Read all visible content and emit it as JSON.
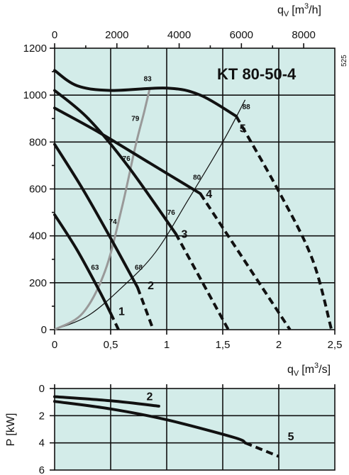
{
  "chart_data": [
    {
      "type": "line",
      "title": "KT 80-50-4",
      "code": "525",
      "x_unit_label": "q",
      "x_unit_sub": "V",
      "x_unit_main": "[m",
      "x_unit_sup": "3",
      "x_unit_tail": "/s]",
      "x_top_unit_label": "q",
      "x_top_unit_sub": "V",
      "x_top_unit_main": "[m",
      "x_top_unit_sup": "3",
      "x_top_unit_tail": "/h]",
      "xlim": [
        0,
        2.5
      ],
      "ylim": [
        0,
        1200
      ],
      "x_ticks": [
        "0",
        "0,5",
        "1",
        "1,5",
        "2",
        "2,5"
      ],
      "x_tick_values": [
        0,
        0.5,
        1,
        1.5,
        2,
        2.5
      ],
      "x_top_ticks": [
        "0",
        "2000",
        "4000",
        "6000",
        "8000"
      ],
      "x_top_tick_values": [
        0,
        2000,
        4000,
        6000,
        8000
      ],
      "y_ticks": [
        "0",
        "200",
        "400",
        "600",
        "800",
        "1000",
        "1200"
      ],
      "y_tick_values": [
        0,
        200,
        400,
        600,
        800,
        1000,
        1200
      ],
      "series": [
        {
          "name": "1",
          "solid": [
            [
              0,
              490
            ],
            [
              0.2,
              340
            ],
            [
              0.4,
              165
            ],
            [
              0.5,
              70
            ]
          ],
          "dashed": [
            [
              0.5,
              70
            ],
            [
              0.57,
              0
            ]
          ],
          "label_at": [
            0.57,
            80
          ]
        },
        {
          "name": "2",
          "solid": [
            [
              0,
              790
            ],
            [
              0.25,
              600
            ],
            [
              0.5,
              390
            ],
            [
              0.74,
              180
            ]
          ],
          "dashed": [
            [
              0.74,
              180
            ],
            [
              0.88,
              0
            ]
          ],
          "label_at": [
            0.83,
            190
          ]
        },
        {
          "name": "3",
          "solid": [
            [
              0,
              1020
            ],
            [
              0.3,
              900
            ],
            [
              0.65,
              700
            ],
            [
              1.08,
              410
            ]
          ],
          "dashed": [
            [
              1.08,
              410
            ],
            [
              1.55,
              0
            ]
          ],
          "label_at": [
            1.13,
            410
          ]
        },
        {
          "name": "4",
          "solid": [
            [
              0,
              945
            ],
            [
              0.4,
              840
            ],
            [
              0.85,
              710
            ],
            [
              1.3,
              580
            ]
          ],
          "dashed": [
            [
              1.3,
              580
            ],
            [
              2.1,
              0
            ]
          ],
          "label_at": [
            1.35,
            580
          ]
        },
        {
          "name": "5",
          "solid": [
            [
              0,
              1105
            ],
            [
              0.2,
              1040
            ],
            [
              0.5,
              1020
            ],
            [
              1.0,
              1030
            ],
            [
              1.3,
              1000
            ],
            [
              1.62,
              910
            ]
          ],
          "dashed": [
            [
              1.62,
              910
            ],
            [
              2.0,
              590
            ],
            [
              2.3,
              300
            ],
            [
              2.47,
              0
            ]
          ],
          "label_at": [
            1.65,
            860
          ]
        }
      ],
      "efficiency_labels": [
        {
          "text": "83",
          "at": [
            0.83,
            1060
          ]
        },
        {
          "text": "88",
          "at": [
            1.71,
            940
          ]
        },
        {
          "text": "79",
          "at": [
            0.72,
            890
          ]
        },
        {
          "text": "76",
          "at": [
            0.64,
            720
          ]
        },
        {
          "text": "80",
          "at": [
            1.27,
            640
          ]
        },
        {
          "text": "74",
          "at": [
            0.52,
            450
          ]
        },
        {
          "text": "76",
          "at": [
            1.04,
            490
          ]
        },
        {
          "text": "63",
          "at": [
            0.36,
            255
          ]
        },
        {
          "text": "68",
          "at": [
            0.75,
            255
          ]
        }
      ],
      "system_curve": [
        [
          0,
          0
        ],
        [
          0.3,
          60
        ],
        [
          0.6,
          180
        ],
        [
          0.9,
          330
        ],
        [
          1.2,
          560
        ],
        [
          1.5,
          800
        ],
        [
          1.7,
          980
        ]
      ],
      "efficiency_curve_83": [
        [
          0,
          0
        ],
        [
          0.25,
          70
        ],
        [
          0.45,
          250
        ],
        [
          0.6,
          520
        ],
        [
          0.72,
          780
        ],
        [
          0.8,
          930
        ],
        [
          0.85,
          1030
        ]
      ]
    },
    {
      "type": "line",
      "ylabel": "P [kW]",
      "xlim": [
        0,
        2.5
      ],
      "ylim": [
        0,
        6
      ],
      "y_ticks": [
        "0",
        "2",
        "4",
        "6"
      ],
      "y_tick_values": [
        0,
        2,
        4,
        6
      ],
      "series": [
        {
          "name": "2",
          "solid": [
            [
              0,
              0.6
            ],
            [
              0.5,
              0.9
            ],
            [
              0.93,
              1.3
            ]
          ],
          "dashed": [],
          "label_at": [
            0.82,
            0.55
          ]
        },
        {
          "name": "5",
          "solid": [
            [
              0,
              0.95
            ],
            [
              0.5,
              1.5
            ],
            [
              1.0,
              2.3
            ],
            [
              1.6,
              3.6
            ],
            [
              1.7,
              4.0
            ]
          ],
          "dashed": [
            [
              1.7,
              4.0
            ],
            [
              2.0,
              5.0
            ]
          ],
          "label_at": [
            2.08,
            3.5
          ]
        }
      ]
    }
  ]
}
